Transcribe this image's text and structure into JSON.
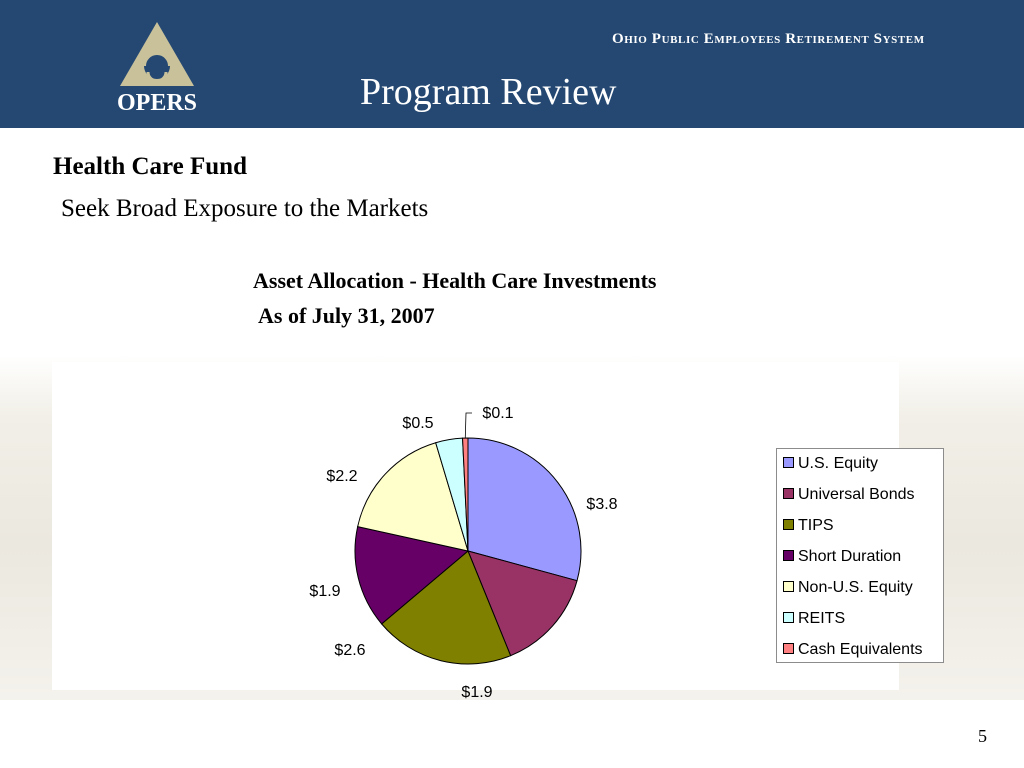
{
  "header": {
    "logo_text": "OPERS",
    "org_name": "Ohio Public Employees Retirement System",
    "title": "Program Review"
  },
  "section": {
    "title": "Health Care Fund",
    "subtitle": "Seek Broad Exposure to the Markets"
  },
  "chart_data": {
    "type": "pie",
    "title": "Asset Allocation - Health Care Investments",
    "subtitle": "As of July 31, 2007",
    "legend_position": "right",
    "slices": [
      {
        "name": "U.S. Equity",
        "value": 3.8,
        "label": "$3.8",
        "color": "#9999ff"
      },
      {
        "name": "Universal Bonds",
        "value": 1.9,
        "label": "$1.9",
        "color": "#993366"
      },
      {
        "name": "TIPS",
        "value": 2.6,
        "label": "$2.6",
        "color": "#808000"
      },
      {
        "name": "Short Duration",
        "value": 1.9,
        "label": "$1.9",
        "color": "#660066"
      },
      {
        "name": "Non-U.S. Equity",
        "value": 2.2,
        "label": "$2.2",
        "color": "#ffffcc"
      },
      {
        "name": "REITS",
        "value": 0.5,
        "label": "$0.5",
        "color": "#ccffff"
      },
      {
        "name": "Cash Equivalents",
        "value": 0.1,
        "label": "$0.1",
        "color": "#ff8080"
      }
    ]
  },
  "page_number": "5"
}
